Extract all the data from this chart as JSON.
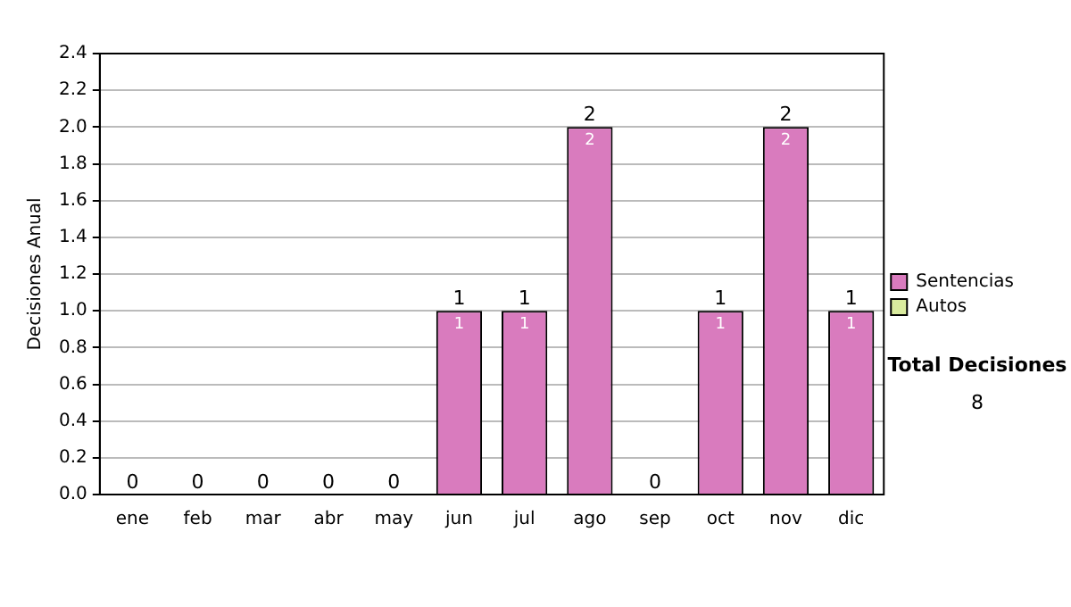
{
  "chart_data": {
    "type": "bar",
    "stacked": true,
    "ylabel": "Decisiones Anual",
    "categories": [
      "ene",
      "feb",
      "mar",
      "abr",
      "may",
      "jun",
      "jul",
      "ago",
      "sep",
      "oct",
      "nov",
      "dic"
    ],
    "series": [
      {
        "name": "Sentencias",
        "color": "#d97bbe",
        "values": [
          0,
          0,
          0,
          0,
          0,
          1,
          1,
          2,
          0,
          1,
          2,
          1
        ],
        "value_labels": [
          null,
          null,
          null,
          null,
          null,
          "1",
          "1",
          "2",
          null,
          "1",
          "2",
          "1"
        ]
      },
      {
        "name": "Autos",
        "color": "#d9eb9e",
        "values": [
          0,
          0,
          0,
          0,
          0,
          0,
          0,
          0,
          0,
          0,
          0,
          0
        ]
      }
    ],
    "totals": [
      "0",
      "0",
      "0",
      "0",
      "0",
      "1",
      "1",
      "2",
      "0",
      "1",
      "2",
      "1"
    ],
    "ylim": [
      0,
      2.4
    ],
    "yticks": [
      {
        "value": 0,
        "label": "0.0"
      },
      0.2,
      0.4,
      0.6,
      0.8,
      {
        "value": 1,
        "label": "1.0"
      },
      1.2,
      1.4,
      1.6,
      1.8,
      {
        "value": 2,
        "label": "2.0"
      },
      2.2,
      2.4
    ],
    "grid": "y",
    "legend": "right",
    "annotations": [
      "Total Decisiones",
      "8"
    ]
  }
}
